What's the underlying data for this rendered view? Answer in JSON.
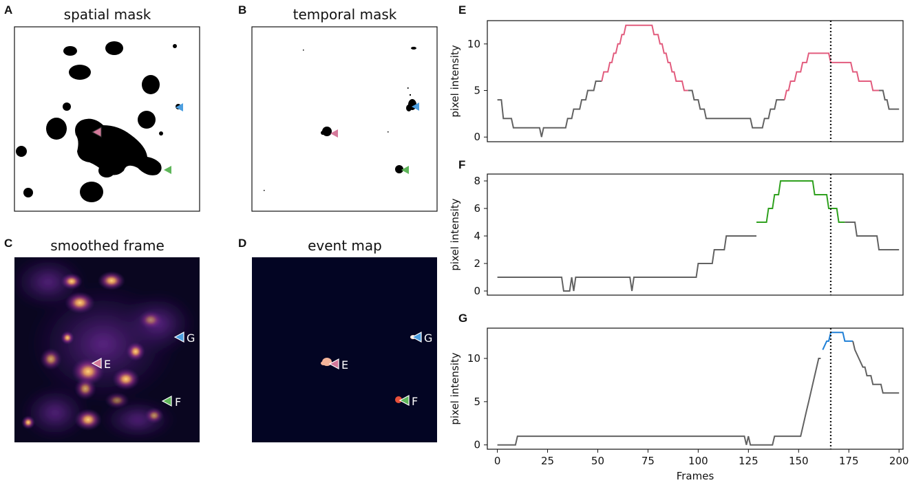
{
  "panels": {
    "A": {
      "label": "A",
      "title": "spatial mask"
    },
    "B": {
      "label": "B",
      "title": "temporal mask"
    },
    "C": {
      "label": "C",
      "title": "smoothed frame"
    },
    "D": {
      "label": "D",
      "title": "event map"
    }
  },
  "markers": [
    {
      "name": "E",
      "color": "#d4799a"
    },
    {
      "name": "F",
      "color": "#5fb65a"
    },
    {
      "name": "G",
      "color": "#4d9fe0"
    }
  ],
  "colors": {
    "baseline": "#616161",
    "event_E": "#e25b7d",
    "event_F": "#2ea01d",
    "event_G": "#1e7fd6",
    "frame_bg": "#0a0620",
    "event_map_bg": "#030523"
  },
  "chart_data": [
    {
      "id": "E",
      "label": "E",
      "type": "line",
      "xlabel": "",
      "ylabel": "pixel intensity",
      "xlim": [
        -5,
        202
      ],
      "ylim": [
        -0.5,
        12.5
      ],
      "xticks": [],
      "yticks": [
        0,
        5,
        10
      ],
      "vline_x": 166,
      "baseline": [
        [
          0,
          4
        ],
        [
          2,
          4
        ],
        [
          3,
          2
        ],
        [
          7,
          2
        ],
        [
          8,
          1
        ],
        [
          21,
          1
        ],
        [
          22,
          0
        ],
        [
          23,
          1
        ],
        [
          34,
          1
        ],
        [
          35,
          2
        ],
        [
          37,
          2
        ],
        [
          38,
          3
        ],
        [
          41,
          3
        ],
        [
          42,
          4
        ],
        [
          44,
          4
        ],
        [
          45,
          5
        ],
        [
          48,
          5
        ],
        [
          49,
          6
        ],
        [
          52,
          6
        ]
      ],
      "event": [
        [
          52,
          6
        ],
        [
          53,
          7
        ],
        [
          55,
          7
        ],
        [
          56,
          8
        ],
        [
          57,
          8
        ],
        [
          58,
          9
        ],
        [
          59,
          9
        ],
        [
          60,
          10
        ],
        [
          61,
          10
        ],
        [
          62,
          11
        ],
        [
          63,
          11
        ],
        [
          64,
          12
        ],
        [
          77,
          12
        ],
        [
          78,
          11
        ],
        [
          80,
          11
        ],
        [
          81,
          10
        ],
        [
          82,
          10
        ],
        [
          83,
          9
        ],
        [
          84,
          9
        ],
        [
          85,
          8
        ],
        [
          86,
          8
        ],
        [
          87,
          7
        ],
        [
          88,
          7
        ],
        [
          89,
          6
        ],
        [
          92,
          6
        ],
        [
          93,
          5
        ],
        [
          95,
          5
        ]
      ],
      "baseline2": [
        [
          95,
          5
        ],
        [
          97,
          5
        ],
        [
          98,
          4
        ],
        [
          100,
          4
        ],
        [
          101,
          3
        ],
        [
          103,
          3
        ],
        [
          104,
          2
        ],
        [
          126,
          2
        ],
        [
          127,
          1
        ],
        [
          132,
          1
        ],
        [
          133,
          2
        ],
        [
          135,
          2
        ],
        [
          136,
          3
        ],
        [
          138,
          3
        ],
        [
          139,
          4
        ],
        [
          143,
          4
        ]
      ],
      "event2": [
        [
          143,
          4
        ],
        [
          144,
          5
        ],
        [
          145,
          5
        ],
        [
          146,
          6
        ],
        [
          148,
          6
        ],
        [
          149,
          7
        ],
        [
          151,
          7
        ],
        [
          152,
          8
        ],
        [
          154,
          8
        ],
        [
          155,
          9
        ],
        [
          165,
          9
        ],
        [
          166,
          8
        ],
        [
          176,
          8
        ],
        [
          177,
          7
        ],
        [
          179,
          7
        ],
        [
          180,
          6
        ],
        [
          186,
          6
        ],
        [
          187,
          5
        ],
        [
          190,
          5
        ]
      ],
      "baseline3": [
        [
          190,
          5
        ],
        [
          192,
          5
        ],
        [
          193,
          4
        ],
        [
          194,
          4
        ],
        [
          195,
          3
        ],
        [
          200,
          3
        ]
      ]
    },
    {
      "id": "F",
      "label": "F",
      "type": "line",
      "xlabel": "",
      "ylabel": "pixel intensity",
      "xlim": [
        -5,
        202
      ],
      "ylim": [
        -0.3,
        8.5
      ],
      "xticks": [],
      "yticks": [
        0,
        2,
        4,
        6,
        8
      ],
      "vline_x": 166,
      "baseline": [
        [
          0,
          1
        ],
        [
          32,
          1
        ],
        [
          33,
          0
        ],
        [
          36,
          0
        ],
        [
          37,
          1
        ],
        [
          38,
          0
        ],
        [
          39,
          1
        ],
        [
          66,
          1
        ],
        [
          67,
          0
        ],
        [
          68,
          1
        ],
        [
          99,
          1
        ],
        [
          100,
          2
        ],
        [
          107,
          2
        ],
        [
          108,
          3
        ],
        [
          113,
          3
        ],
        [
          114,
          4
        ],
        [
          129,
          4
        ]
      ],
      "event": [
        [
          129,
          5
        ],
        [
          134,
          5
        ],
        [
          135,
          6
        ],
        [
          137,
          6
        ],
        [
          138,
          7
        ],
        [
          140,
          7
        ],
        [
          141,
          8
        ],
        [
          157,
          8
        ],
        [
          158,
          7
        ],
        [
          164,
          7
        ],
        [
          165,
          6
        ],
        [
          169,
          6
        ],
        [
          170,
          5
        ],
        [
          173,
          5
        ]
      ],
      "baseline2": [
        [
          173,
          5
        ],
        [
          178,
          5
        ],
        [
          179,
          4
        ],
        [
          189,
          4
        ],
        [
          190,
          3
        ],
        [
          200,
          3
        ]
      ]
    },
    {
      "id": "G",
      "label": "G",
      "type": "line",
      "xlabel": "Frames",
      "ylabel": "pixel intensity",
      "xlim": [
        -5,
        202
      ],
      "ylim": [
        -0.5,
        13.5
      ],
      "xticks": [
        0,
        25,
        50,
        75,
        100,
        125,
        150,
        175,
        200
      ],
      "yticks": [
        0,
        5,
        10
      ],
      "vline_x": 166,
      "baseline": [
        [
          0,
          0
        ],
        [
          9,
          0
        ],
        [
          10,
          1
        ],
        [
          123,
          1
        ],
        [
          124,
          0
        ],
        [
          125,
          1
        ],
        [
          126,
          0
        ],
        [
          137,
          0
        ],
        [
          138,
          1
        ],
        [
          151,
          1
        ],
        [
          152,
          2
        ],
        [
          153,
          3
        ],
        [
          154,
          4
        ],
        [
          155,
          5
        ],
        [
          156,
          6
        ],
        [
          157,
          7
        ],
        [
          158,
          8
        ],
        [
          159,
          9
        ],
        [
          160,
          10
        ],
        [
          161,
          10
        ]
      ],
      "event": [
        [
          162,
          11
        ],
        [
          164,
          12
        ],
        [
          165,
          12
        ],
        [
          166,
          13
        ],
        [
          172,
          13
        ],
        [
          173,
          12
        ],
        [
          177,
          12
        ]
      ],
      "baseline2": [
        [
          177,
          12
        ],
        [
          178,
          11
        ],
        [
          180,
          10
        ],
        [
          182,
          9
        ],
        [
          183,
          9
        ],
        [
          184,
          8
        ],
        [
          186,
          8
        ],
        [
          187,
          7
        ],
        [
          191,
          7
        ],
        [
          192,
          6
        ],
        [
          197,
          6
        ],
        [
          200,
          6
        ]
      ]
    }
  ]
}
